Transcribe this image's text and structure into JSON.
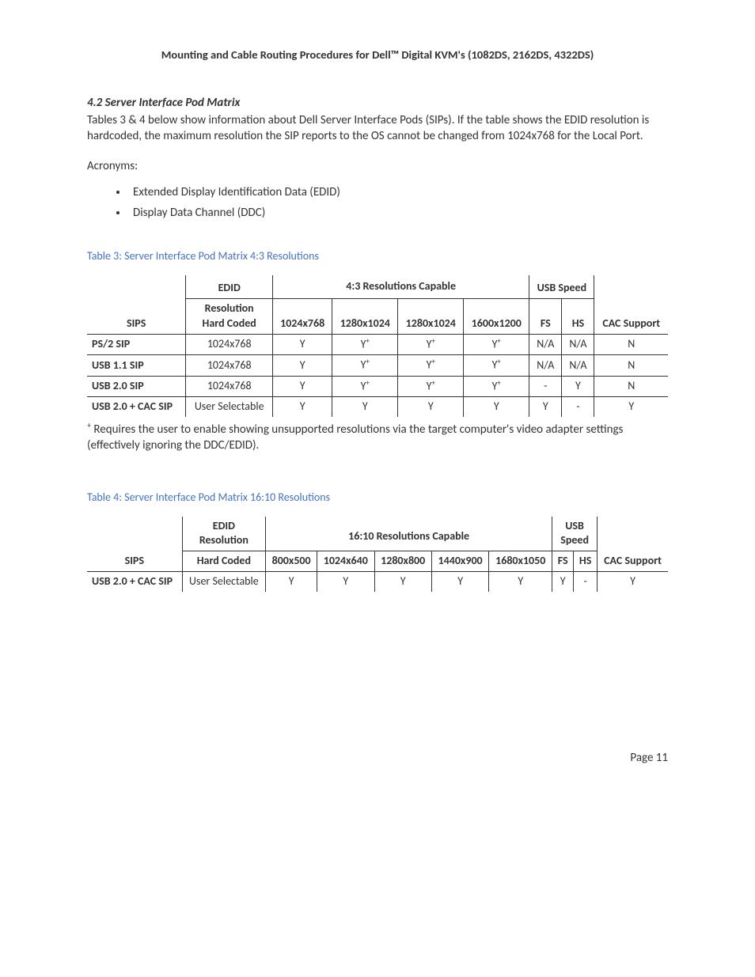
{
  "header": "Mounting and Cable Routing Procedures for Dell™ Digital KVM's (1082DS, 2162DS, 4322DS)",
  "section": {
    "number": "4.2",
    "title": "Server Interface Pod Matrix",
    "intro": "Tables 3 & 4 below show information about Dell Server Interface Pods (SIPs).  If the table shows the EDID resolution is hardcoded, the maximum resolution the SIP reports to the OS cannot be changed from 1024x768 for the Local Port."
  },
  "acronyms_label": "Acronyms:",
  "acronyms": [
    "Extended Display Identification Data (EDID)",
    " Display Data Channel (DDC)"
  ],
  "table3": {
    "caption": "Table 3: Server Interface Pod Matrix 4:3 Resolutions",
    "group_headers": {
      "edid": "EDID Resolution Hard Coded",
      "res_caps": "4:3 Resolutions Capable",
      "usb": "USB Speed",
      "cac": "CAC Support"
    },
    "sips_label": "SIPS",
    "res_cols": [
      "1024x768",
      "1280x1024",
      "1280x1024",
      "1600x1200"
    ],
    "usb_cols": [
      "FS",
      "HS"
    ],
    "rows": [
      {
        "sip": "PS/2 SIP",
        "edid": "1024x768",
        "r": [
          "Y",
          "Y+",
          "Y+",
          "Y+"
        ],
        "fs": "N/A",
        "hs": "N/A",
        "cac": "N"
      },
      {
        "sip": "USB 1.1 SIP",
        "edid": "1024x768",
        "r": [
          "Y",
          "Y+",
          "Y+",
          "Y+"
        ],
        "fs": "N/A",
        "hs": "N/A",
        "cac": "N"
      },
      {
        "sip": "USB 2.0 SIP",
        "edid": "1024x768",
        "r": [
          "Y",
          "Y+",
          "Y+",
          "Y+"
        ],
        "fs": "-",
        "hs": "Y",
        "cac": "N"
      },
      {
        "sip": "USB 2.0 + CAC SIP",
        "edid": "User Selectable",
        "r": [
          "Y",
          "Y",
          "Y",
          "Y"
        ],
        "fs": "Y",
        "hs": "-",
        "cac": "Y"
      }
    ]
  },
  "footnote": "+ Requires the user to enable showing unsupported resolutions via the target computer's video adapter settings (effectively ignoring the DDC/EDID).",
  "table4": {
    "caption": "Table 4: Server Interface Pod Matrix 16:10 Resolutions",
    "group_headers": {
      "edid": "EDID Resolution Hard Coded",
      "res_caps": "16:10 Resolutions Capable",
      "usb": "USB Speed",
      "cac": "CAC Support"
    },
    "sips_label": "SIPS",
    "res_cols": [
      "800x500",
      "1024x640",
      "1280x800",
      "1440x900",
      "1680x1050"
    ],
    "usb_cols": [
      "FS",
      "HS"
    ],
    "rows": [
      {
        "sip": "USB 2.0 + CAC SIP",
        "edid": "User Selectable",
        "r": [
          "Y",
          "Y",
          "Y",
          "Y",
          "Y"
        ],
        "fs": "Y",
        "hs": "-",
        "cac": "Y"
      }
    ]
  },
  "page_number": "Page 11",
  "colors": {
    "caption": "#4472c4",
    "text": "#333333",
    "border": "#333333",
    "background": "#ffffff"
  }
}
